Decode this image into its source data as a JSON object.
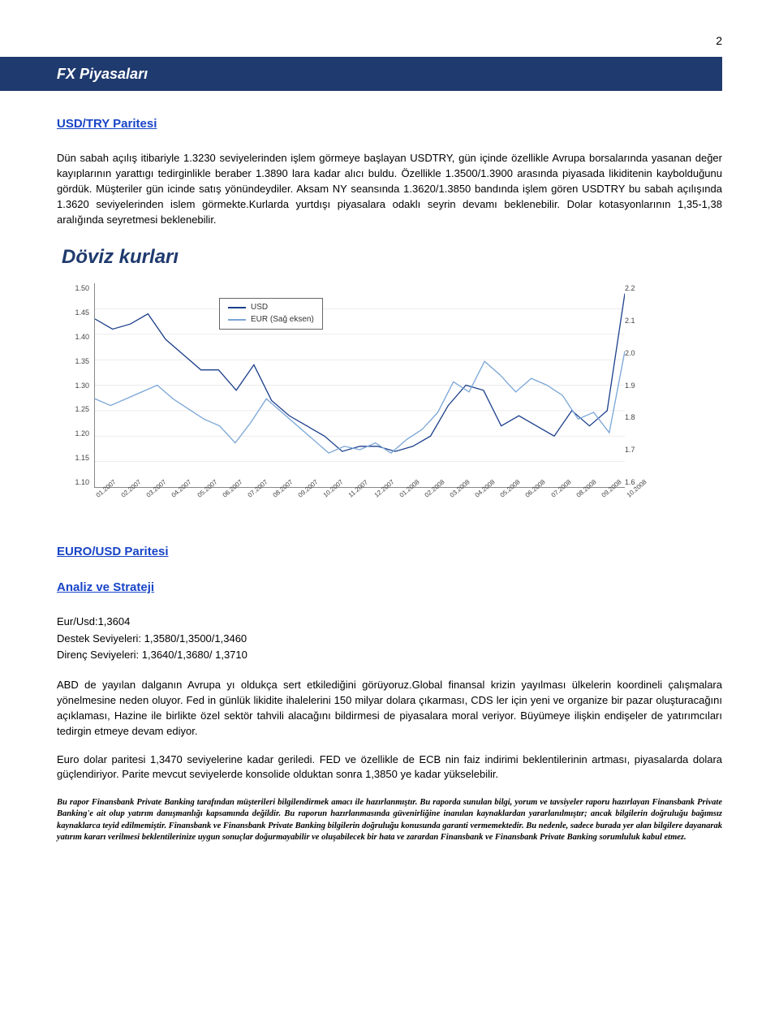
{
  "page_number": "2",
  "banner": "FX Piyasaları",
  "section1": {
    "heading": "USD/TRY Paritesi",
    "paragraph": "Dün sabah açılış itibariyle 1.3230 seviyelerinden işlem görmeye başlayan USDTRY, gün içinde özellikle Avrupa borsalarında yasanan değer kayıplarının yarattıgı tedirginlikle beraber 1.3890 lara kadar alıcı buldu. Özellikle 1.3500/1.3900 arasında piyasada likiditenin kaybolduğunu gördük. Müşteriler gün icinde satış yönündeydiler. Aksam NY seansında 1.3620/1.3850 bandında işlem gören USDTRY bu sabah açılışında 1.3620 seviyelerinden islem görmekte.Kurlarda yurtdışı piyasalara odaklı seyrin devamı beklenebilir. Dolar kotasyonlarının 1,35-1,38 aralığında seyretmesi beklenebilir."
  },
  "chart": {
    "title": "Döviz kurları",
    "legend": [
      {
        "label": "USD",
        "color": "#1b3f8b"
      },
      {
        "label": "EUR (Sağ eksen)",
        "color": "#7aa6d6"
      }
    ],
    "y_left_ticks": [
      "1.50",
      "1.45",
      "1.40",
      "1.35",
      "1.30",
      "1.25",
      "1.20",
      "1.15",
      "1.10"
    ],
    "y_left_min": 1.1,
    "y_left_max": 1.5,
    "y_right_ticks": [
      "2.2",
      "2.1",
      "2.0",
      "1.9",
      "1.8",
      "1.7",
      "1.6"
    ],
    "y_right_min": 1.6,
    "y_right_max": 2.2,
    "x_ticks": [
      "01.2007",
      "02.2007",
      "03.2007",
      "04.2007",
      "05.2007",
      "06.2007",
      "07.2007",
      "08.2007",
      "09.2007",
      "10.2007",
      "11.2007",
      "12.2007",
      "01.2008",
      "02.2008",
      "03.2008",
      "04.2008",
      "05.2008",
      "06.2008",
      "07.2008",
      "08.2008",
      "09.2008",
      "10.2008"
    ],
    "usd_series": [
      1.43,
      1.41,
      1.42,
      1.44,
      1.39,
      1.36,
      1.33,
      1.33,
      1.29,
      1.34,
      1.27,
      1.24,
      1.22,
      1.2,
      1.17,
      1.18,
      1.18,
      1.17,
      1.18,
      1.2,
      1.26,
      1.3,
      1.29,
      1.22,
      1.24,
      1.22,
      1.2,
      1.25,
      1.22,
      1.25,
      1.48
    ],
    "eur_series": [
      1.86,
      1.84,
      1.86,
      1.88,
      1.9,
      1.86,
      1.83,
      1.8,
      1.78,
      1.73,
      1.79,
      1.86,
      1.82,
      1.78,
      1.74,
      1.7,
      1.72,
      1.71,
      1.73,
      1.7,
      1.74,
      1.77,
      1.82,
      1.91,
      1.88,
      1.97,
      1.93,
      1.88,
      1.92,
      1.9,
      1.87,
      1.8,
      1.82,
      1.76,
      2.0
    ],
    "line_width": 1.3,
    "background": "#ffffff"
  },
  "section2": {
    "heading": "EURO/USD Paritesi",
    "subheading": "Analiz ve Strateji",
    "rate_line": "Eur/Usd:1,3604",
    "support_line": "Destek Seviyeleri:  1,3580/1,3500/1,3460",
    "resist_line": "Direnç Seviyeleri:  1,3640/1,3680/ 1,3710",
    "p1": "ABD de yayılan dalganın Avrupa yı oldukça sert etkilediğini görüyoruz.Global finansal krizin yayılması ülkelerin koordineli çalışmalara yönelmesine neden oluyor. Fed in günlük likidite ihalelerini 150 milyar dolara çıkarması, CDS ler için yeni ve organize bir pazar oluşturacağını açıklaması, Hazine ile birlikte özel sektör tahvili alacağını bildirmesi de piyasalara moral veriyor. Büyümeye ilişkin endişeler de yatırımcıları tedirgin etmeye devam ediyor.",
    "p2": "Euro dolar paritesi 1,3470 seviyelerine kadar geriledi.  FED ve özellikle de  ECB nin faiz indirimi beklentilerinin artması, piyasalarda dolara güçlendiriyor. Parite mevcut seviyelerde konsolide olduktan sonra 1,3850 ye kadar yükselebilir."
  },
  "disclaimer": "Bu rapor Finansbank Private Banking tarafından müşterileri bilgilendirmek amacı ile hazırlanmıştır. Bu raporda sunulan bilgi, yorum ve tavsiyeler raporu hazırlayan Finansbank Private Banking'e ait olup yatırım danışmanlığı kapsamında değildir. Bu raporun hazırlanmasında güvenirliğine inanılan kaynaklardan yararlanılmıştır; ancak bilgilerin doğruluğu bağımsız kaynaklarca teyid edilmemiştir. Finansbank ve Finansbank Private Banking bilgilerin doğruluğu konusunda garanti vermemektedir. Bu nedenle, sadece burada yer alan bilgilere dayanarak yatırım kararı verilmesi beklentilerinize uygun sonuçlar doğurmayabilir ve oluşabilecek bir hata ve zarardan Finansbank ve Finansbank Private Banking sorumluluk kabul etmez."
}
